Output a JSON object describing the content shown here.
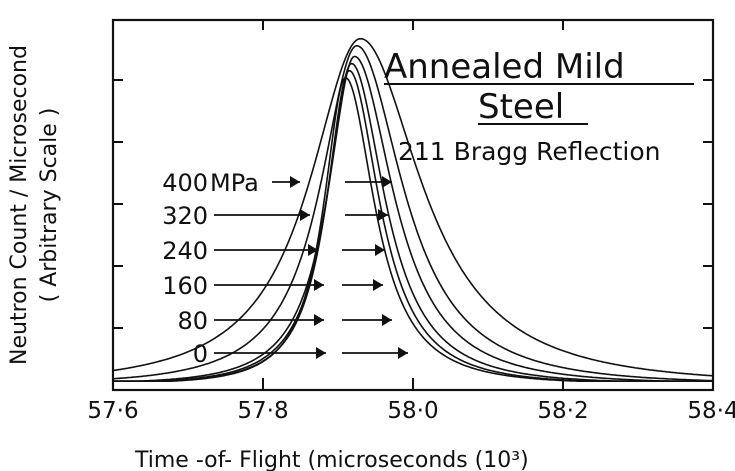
{
  "chart_data": {
    "type": "line",
    "title_line1": "Annealed Mild",
    "title_line2": "Steel",
    "subtitle": "211 Bragg Reflection",
    "xlabel": "Time -of- Flight  (microseconds (10³)",
    "ylabel_line1": "Neutron Count / Microsecond",
    "ylabel_line2": "( Arbitrary Scale )",
    "xlim": [
      57.6,
      58.4
    ],
    "ylim": [
      0,
      1.0
    ],
    "x_ticks": [
      57.6,
      57.8,
      58.0,
      58.2,
      58.4
    ],
    "x_tick_labels": [
      "57·6",
      "57·8",
      "58·0",
      "58·2",
      "58·4"
    ],
    "stress_unit": "MPa",
    "series": [
      {
        "name": "0",
        "peak_x": 57.91,
        "peak_y": 0.86,
        "left_w": 0.045,
        "right_w": 0.06
      },
      {
        "name": "80",
        "peak_x": 57.915,
        "peak_y": 0.88,
        "left_w": 0.047,
        "right_w": 0.062
      },
      {
        "name": "160",
        "peak_x": 57.918,
        "peak_y": 0.9,
        "left_w": 0.05,
        "right_w": 0.068
      },
      {
        "name": "240",
        "peak_x": 57.922,
        "peak_y": 0.92,
        "left_w": 0.055,
        "right_w": 0.08
      },
      {
        "name": "320",
        "peak_x": 57.925,
        "peak_y": 0.95,
        "left_w": 0.075,
        "right_w": 0.095
      },
      {
        "name": "400",
        "peak_x": 57.93,
        "peak_y": 0.97,
        "left_w": 0.105,
        "right_w": 0.125
      }
    ],
    "stress_labels": [
      "400",
      "320",
      "240",
      "160",
      "80",
      "0"
    ],
    "grid": false
  }
}
